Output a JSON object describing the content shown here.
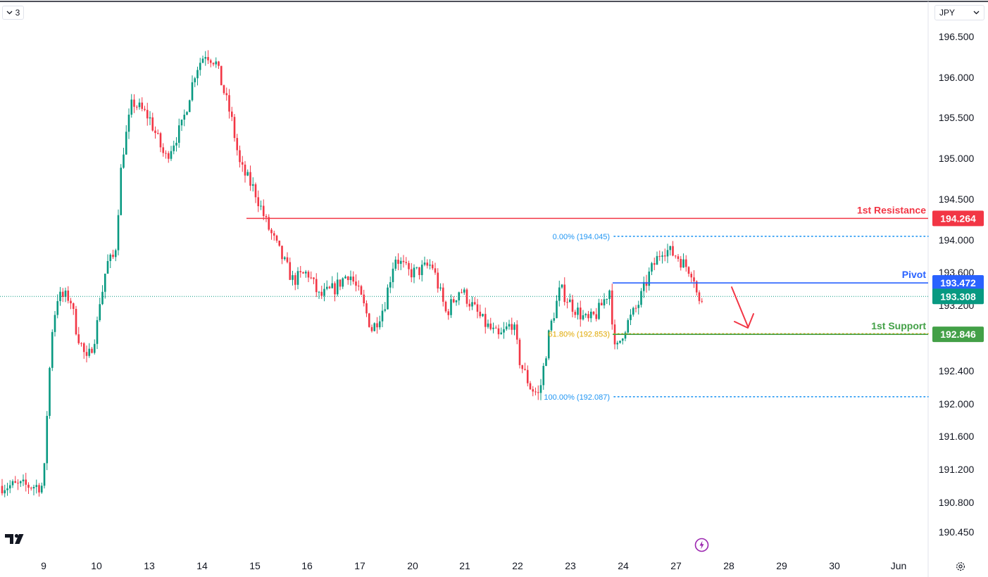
{
  "toolbar": {
    "interval_label": "3",
    "interval_icon": "chevron-down-icon",
    "currency_label": "JPY",
    "currency_icon": "chevron-down-icon"
  },
  "colors": {
    "up": "#089981",
    "down": "#f23645",
    "resistance": "#f23645",
    "pivot": "#2962ff",
    "support": "#43a047",
    "fib": "#2196f3",
    "fib_618": "#e0a800",
    "last_price": "#089981",
    "arrow": "#f23645"
  },
  "chart_data": {
    "type": "candlestick",
    "title": "",
    "xlabel": "",
    "ylabel": "",
    "ylim": [
      190.3,
      196.7
    ],
    "grid": false,
    "y_ticks": [
      "196.500",
      "196.000",
      "195.500",
      "195.000",
      "194.500",
      "194.000",
      "193.600",
      "193.200",
      "192.400",
      "192.000",
      "191.600",
      "191.200",
      "190.800",
      "190.450"
    ],
    "x_ticks": [
      "9",
      "10",
      "13",
      "14",
      "15",
      "16",
      "17",
      "20",
      "21",
      "22",
      "23",
      "24",
      "27",
      "28",
      "29",
      "30",
      "Jun"
    ],
    "last_price": 193.308,
    "levels": [
      {
        "name": "1st Resistance",
        "value": 194.264,
        "label": "194.264",
        "color_key": "resistance"
      },
      {
        "name": "Pivot",
        "value": 193.472,
        "label": "193.472",
        "color_key": "pivot"
      },
      {
        "name": "1st Support",
        "value": 192.846,
        "label": "192.846",
        "color_key": "support"
      }
    ],
    "fib_levels": [
      {
        "label": "0.00% (194.045)",
        "value": 194.045
      },
      {
        "label": "61.80% (192.853)",
        "value": 192.853
      },
      {
        "label": "100.00% (192.087)",
        "value": 192.087
      }
    ],
    "last_price_label": "193.308",
    "path": [
      [
        0,
        191.0
      ],
      [
        0.04,
        191.6
      ],
      [
        0.09,
        192.2
      ],
      [
        0.16,
        192.9
      ],
      [
        0.26,
        193.3
      ],
      [
        0.5,
        193.3
      ],
      [
        0.62,
        192.9
      ],
      [
        0.82,
        192.5
      ],
      [
        1.0,
        192.9
      ],
      [
        1.07,
        193.3
      ],
      [
        1.12,
        193.4
      ],
      [
        1.19,
        193.7
      ],
      [
        1.35,
        193.8
      ],
      [
        1.48,
        195.0
      ],
      [
        1.68,
        195.7
      ],
      [
        2.0,
        195.5
      ],
      [
        2.3,
        195.0
      ],
      [
        2.62,
        195.4
      ],
      [
        2.88,
        196.1
      ],
      [
        3.06,
        196.3
      ],
      [
        3.25,
        196.2
      ],
      [
        3.55,
        195.5
      ],
      [
        3.72,
        194.9
      ],
      [
        4.0,
        194.6
      ],
      [
        4.22,
        194.2
      ],
      [
        4.5,
        193.8
      ],
      [
        4.72,
        193.5
      ],
      [
        5.0,
        193.6
      ],
      [
        5.22,
        193.3
      ],
      [
        5.5,
        193.4
      ],
      [
        5.78,
        193.6
      ],
      [
        6.0,
        193.3
      ],
      [
        6.22,
        192.9
      ],
      [
        6.45,
        193.2
      ],
      [
        6.65,
        193.8
      ],
      [
        6.9,
        193.6
      ],
      [
        7.05,
        193.6
      ],
      [
        7.35,
        193.7
      ],
      [
        7.62,
        193.1
      ],
      [
        7.88,
        193.4
      ],
      [
        8.0,
        193.3
      ],
      [
        8.32,
        193.0
      ],
      [
        8.62,
        192.8
      ],
      [
        8.88,
        193.0
      ],
      [
        9.02,
        192.5
      ],
      [
        9.22,
        192.2
      ],
      [
        9.38,
        192.1
      ],
      [
        9.58,
        192.9
      ],
      [
        9.78,
        193.4
      ],
      [
        10.0,
        193.2
      ],
      [
        10.3,
        193.0
      ],
      [
        10.48,
        193.1
      ],
      [
        10.72,
        193.4
      ],
      [
        10.82,
        192.6
      ],
      [
        10.98,
        192.9
      ],
      [
        11.25,
        193.2
      ],
      [
        11.48,
        193.6
      ],
      [
        11.72,
        193.9
      ],
      [
        12.0,
        193.8
      ],
      [
        12.12,
        193.7
      ],
      [
        12.3,
        193.6
      ],
      [
        12.4,
        193.2
      ],
      [
        12.48,
        193.3
      ]
    ]
  }
}
